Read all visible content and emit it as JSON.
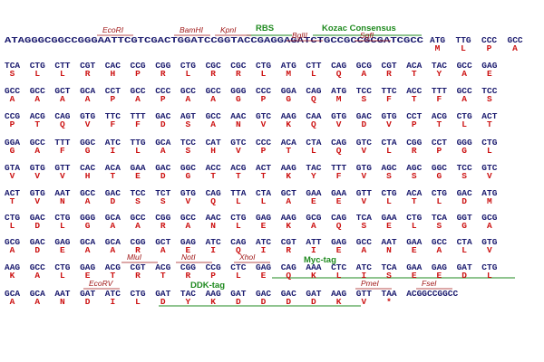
{
  "rows": [
    {
      "prefix": "ATAGGGCGGCCGGGAATTCGTCGACTGGATCCGGTACCGAGGAGATCTGCCGCCGCGATCGCC",
      "codons": [
        "ATG",
        "TTG",
        "CCC",
        "GCC"
      ],
      "aa": [
        "M",
        "L",
        "P",
        "A"
      ]
    },
    {
      "codons": [
        "TCA",
        "CTG",
        "CTT",
        "CGT",
        "CAC",
        "CCG",
        "CGG",
        "CTG",
        "CGC",
        "CGC",
        "CTG",
        "ATG",
        "CTT",
        "CAG",
        "GCG",
        "CGT",
        "ACA",
        "TAC",
        "GCC",
        "GAG"
      ],
      "aa": [
        "S",
        "L",
        "L",
        "R",
        "H",
        "P",
        "R",
        "L",
        "R",
        "R",
        "L",
        "M",
        "L",
        "Q",
        "A",
        "R",
        "T",
        "Y",
        "A",
        "E"
      ]
    },
    {
      "codons": [
        "GCC",
        "GCC",
        "GCT",
        "GCA",
        "CCT",
        "GCC",
        "CCC",
        "GCC",
        "GCC",
        "GGG",
        "CCC",
        "GGA",
        "CAG",
        "ATG",
        "TCC",
        "TTC",
        "ACC",
        "TTT",
        "GCC",
        "TCC"
      ],
      "aa": [
        "A",
        "A",
        "A",
        "A",
        "P",
        "A",
        "P",
        "A",
        "A",
        "G",
        "P",
        "G",
        "Q",
        "M",
        "S",
        "F",
        "T",
        "F",
        "A",
        "S"
      ]
    },
    {
      "codons": [
        "CCG",
        "ACG",
        "CAG",
        "GTG",
        "TTC",
        "TTT",
        "GAC",
        "AGT",
        "GCC",
        "AAC",
        "GTC",
        "AAG",
        "CAA",
        "GTG",
        "GAC",
        "GTG",
        "CCT",
        "ACG",
        "CTG",
        "ACT"
      ],
      "aa": [
        "P",
        "T",
        "Q",
        "V",
        "F",
        "F",
        "D",
        "S",
        "A",
        "N",
        "V",
        "K",
        "Q",
        "V",
        "D",
        "V",
        "P",
        "T",
        "L",
        "T"
      ]
    },
    {
      "codons": [
        "GGA",
        "GCC",
        "TTT",
        "GGC",
        "ATC",
        "TTG",
        "GCA",
        "TCC",
        "CAT",
        "GTC",
        "CCC",
        "ACA",
        "CTA",
        "CAG",
        "GTC",
        "CTA",
        "CGG",
        "CCT",
        "GGG",
        "CTG"
      ],
      "aa": [
        "G",
        "A",
        "F",
        "G",
        "I",
        "L",
        "A",
        "S",
        "H",
        "V",
        "P",
        "T",
        "L",
        "Q",
        "V",
        "L",
        "R",
        "P",
        "G",
        "L"
      ]
    },
    {
      "codons": [
        "GTA",
        "GTG",
        "GTT",
        "CAC",
        "ACA",
        "GAA",
        "GAC",
        "GGC",
        "ACC",
        "ACG",
        "ACT",
        "AAG",
        "TAC",
        "TTT",
        "GTG",
        "AGC",
        "AGC",
        "GGC",
        "TCC",
        "GTC"
      ],
      "aa": [
        "V",
        "V",
        "V",
        "H",
        "T",
        "E",
        "D",
        "G",
        "T",
        "T",
        "T",
        "K",
        "Y",
        "F",
        "V",
        "S",
        "S",
        "G",
        "S",
        "V"
      ]
    },
    {
      "codons": [
        "ACT",
        "GTG",
        "AAT",
        "GCC",
        "GAC",
        "TCC",
        "TCT",
        "GTG",
        "CAG",
        "TTA",
        "CTA",
        "GCT",
        "GAA",
        "GAA",
        "GTT",
        "CTG",
        "ACA",
        "CTG",
        "GAC",
        "ATG"
      ],
      "aa": [
        "T",
        "V",
        "N",
        "A",
        "D",
        "S",
        "S",
        "V",
        "Q",
        "L",
        "L",
        "A",
        "E",
        "E",
        "V",
        "L",
        "T",
        "L",
        "D",
        "M"
      ]
    },
    {
      "codons": [
        "CTG",
        "GAC",
        "CTG",
        "GGG",
        "GCA",
        "GCC",
        "CGG",
        "GCC",
        "AAC",
        "CTG",
        "GAG",
        "AAG",
        "GCG",
        "CAG",
        "TCA",
        "GAA",
        "CTG",
        "TCA",
        "GGT",
        "GCG"
      ],
      "aa": [
        "L",
        "D",
        "L",
        "G",
        "A",
        "A",
        "R",
        "A",
        "N",
        "L",
        "E",
        "K",
        "A",
        "Q",
        "S",
        "E",
        "L",
        "S",
        "G",
        "A"
      ]
    },
    {
      "codons": [
        "GCG",
        "GAC",
        "GAG",
        "GCA",
        "GCA",
        "CGG",
        "GCT",
        "GAG",
        "ATC",
        "CAG",
        "ATC",
        "CGT",
        "ATT",
        "GAG",
        "GCC",
        "AAT",
        "GAA",
        "GCC",
        "CTA",
        "GTG"
      ],
      "aa": [
        "A",
        "D",
        "E",
        "A",
        "A",
        "R",
        "A",
        "E",
        "I",
        "Q",
        "I",
        "R",
        "I",
        "E",
        "A",
        "N",
        "E",
        "A",
        "L",
        "V"
      ]
    },
    {
      "codons": [
        "AAG",
        "GCC",
        "CTG",
        "GAG",
        "ACG",
        "CGT",
        "ACG",
        "CGG",
        "CCG",
        "CTC",
        "GAG",
        "CAG",
        "AAA",
        "CTC",
        "ATC",
        "TCA",
        "GAA",
        "GAG",
        "GAT",
        "CTG"
      ],
      "aa": [
        "K",
        "A",
        "L",
        "E",
        "T",
        "R",
        "T",
        "R",
        "P",
        "L",
        "E",
        "Q",
        "K",
        "L",
        "I",
        "S",
        "E",
        "E",
        "D",
        "L"
      ]
    },
    {
      "codons": [
        "GCA",
        "GCA",
        "AAT",
        "GAT",
        "ATC",
        "CTG",
        "GAT",
        "TAC",
        "AAG",
        "GAT",
        "GAC",
        "GAC",
        "GAT",
        "AAG",
        "GTT",
        "TAA"
      ],
      "aa": [
        "A",
        "A",
        "N",
        "D",
        "I",
        "L",
        "D",
        "Y",
        "K",
        "D",
        "D",
        "D",
        "D",
        "K",
        "V",
        "*"
      ],
      "suffix": "ACGGCCGGCC"
    }
  ],
  "enzymes": [
    "EcoRI",
    "BamHI",
    "KpnI",
    "BglII",
    "SgfI",
    "MluI",
    "NotI",
    "XhoI",
    "EcoRV",
    "PmeI",
    "FseI"
  ],
  "tags": [
    "RBS",
    "Kozac Consensus",
    "Myc-tag",
    "DDK-tag"
  ]
}
